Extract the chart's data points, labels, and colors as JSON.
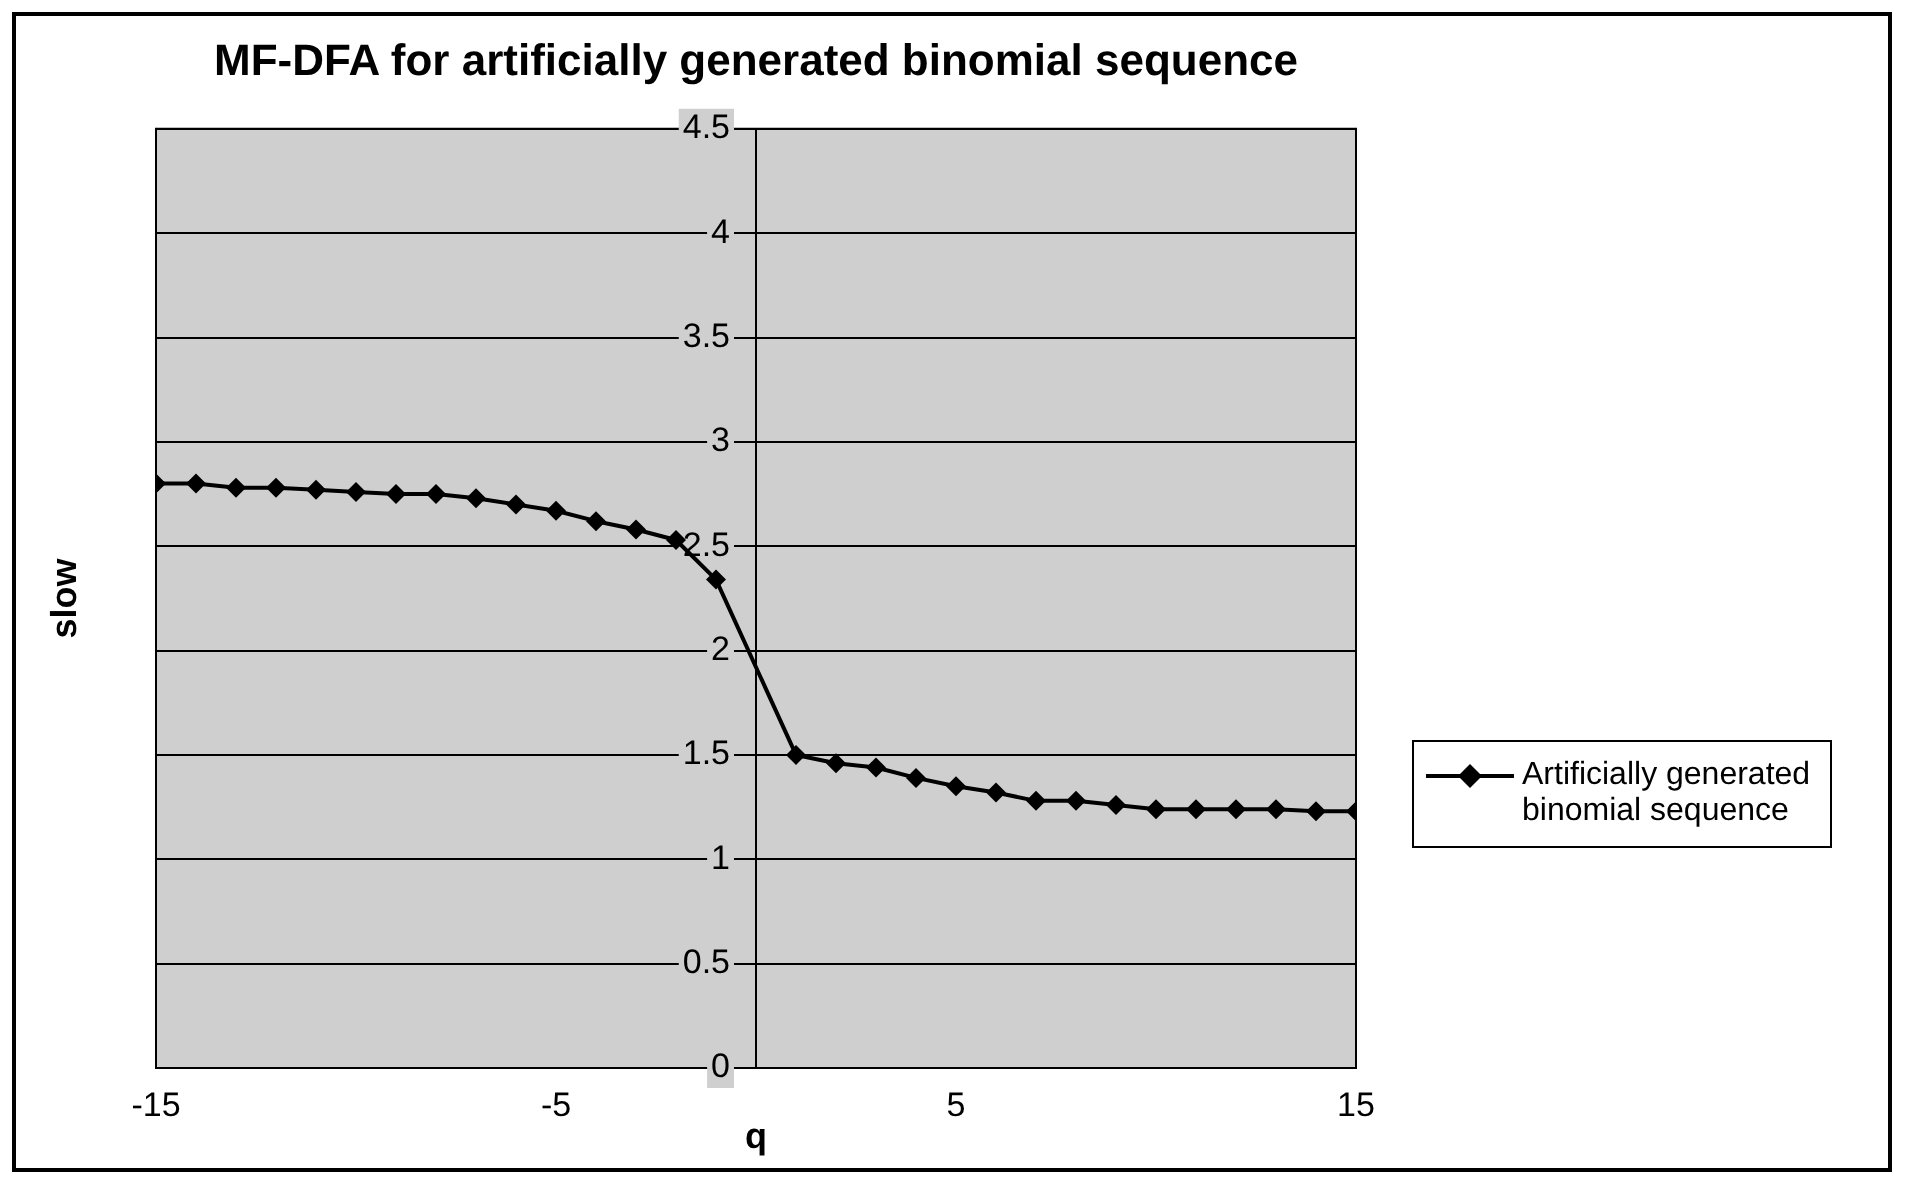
{
  "chart_data": {
    "type": "line",
    "title": "MF-DFA for artificially generated binomial sequence",
    "xlabel": "q",
    "ylabel": "slow",
    "x": [
      -15,
      -14,
      -13,
      -12,
      -11,
      -10,
      -9,
      -8,
      -7,
      -6,
      -5,
      -4,
      -3,
      -2,
      -1,
      1,
      2,
      3,
      4,
      5,
      6,
      7,
      8,
      9,
      10,
      11,
      12,
      13,
      14,
      15
    ],
    "series": [
      {
        "name": "Artificially generated binomial sequence",
        "color": "#000000",
        "values": [
          2.8,
          2.8,
          2.78,
          2.78,
          2.77,
          2.76,
          2.75,
          2.75,
          2.73,
          2.7,
          2.67,
          2.62,
          2.58,
          2.53,
          2.34,
          1.5,
          1.46,
          1.44,
          1.39,
          1.35,
          1.32,
          1.28,
          1.28,
          1.26,
          1.24,
          1.24,
          1.24,
          1.24,
          1.23,
          1.23
        ]
      }
    ],
    "xlim": [
      -15,
      15
    ],
    "xticks": [
      -15,
      -5,
      5,
      15
    ],
    "ylim": [
      0,
      4.5
    ],
    "yticks": [
      0,
      0.5,
      1,
      1.5,
      2,
      2.5,
      3,
      3.5,
      4,
      4.5
    ],
    "grid": "y",
    "legend": "right",
    "marker": "diamond",
    "line_style": "solid"
  }
}
